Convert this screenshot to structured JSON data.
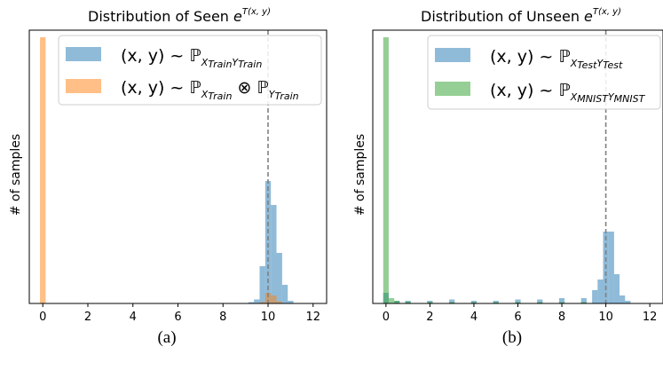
{
  "chart_data": [
    {
      "type": "bar",
      "subtype": "histogram",
      "title": "Distribution of Seen e^{T(x, y)}",
      "title_text": "Distribution of Seen",
      "title_math": "e",
      "title_sup": "T(x, y)",
      "ylabel": "# of samples",
      "xlabel": "",
      "caption": "(a)",
      "xlim": [
        -0.6,
        12.6
      ],
      "ylim": [
        0,
        100
      ],
      "xticks": [
        "0",
        "2",
        "4",
        "6",
        "8",
        "10",
        "12"
      ],
      "xtick_values": [
        0,
        2,
        4,
        6,
        8,
        10,
        12
      ],
      "yticks_shown": false,
      "grid": false,
      "legend_position": "top-right",
      "vline": {
        "x": 10,
        "style": "dashed",
        "color": "#808080"
      },
      "bin_width": 0.25,
      "series": [
        {
          "legend_label": "(x, y) ~ P_{X_Train Y_Train}",
          "legend_main": "(x, y) ~ ℙ",
          "legend_sub": "X",
          "legend_sub2": "Train",
          "legend_sub3": "Y",
          "legend_sub4": "Train",
          "color": "#1f77b4",
          "alpha": 0.5,
          "bins": [
            {
              "x": 9.25,
              "v": 0.5
            },
            {
              "x": 9.5,
              "v": 1.5
            },
            {
              "x": 9.75,
              "v": 14
            },
            {
              "x": 10.0,
              "v": 46
            },
            {
              "x": 10.25,
              "v": 37
            },
            {
              "x": 10.5,
              "v": 19
            },
            {
              "x": 10.75,
              "v": 7
            },
            {
              "x": 11.0,
              "v": 1
            }
          ]
        },
        {
          "legend_label": "(x, y) ~ P_{X_Train} ⊗ P_{Y_Train}",
          "legend_main": "(x, y) ~ ℙ",
          "legend_sub": "X",
          "legend_sub2": "Train",
          "legend_op": " ⊗ ℙ",
          "legend_sub3": "Y",
          "legend_sub4": "Train",
          "color": "#ff7f0e",
          "alpha": 0.5,
          "bins": [
            {
              "x": 0.0,
              "v": 100
            },
            {
              "x": 9.75,
              "v": 0.5
            },
            {
              "x": 10.0,
              "v": 4
            },
            {
              "x": 10.25,
              "v": 3
            },
            {
              "x": 10.5,
              "v": 0.8
            }
          ]
        }
      ]
    },
    {
      "type": "bar",
      "subtype": "histogram",
      "title": "Distribution of Unseen e^{T(x, y)}",
      "title_text": "Distribution of Unseen",
      "title_math": "e",
      "title_sup": "T(x, y)",
      "ylabel": "# of samples",
      "xlabel": "",
      "caption": "(b)",
      "xlim": [
        -0.6,
        12.6
      ],
      "ylim": [
        0,
        100
      ],
      "xticks": [
        "0",
        "2",
        "4",
        "6",
        "8",
        "10",
        "12"
      ],
      "xtick_values": [
        0,
        2,
        4,
        6,
        8,
        10,
        12
      ],
      "yticks_shown": false,
      "grid": false,
      "legend_position": "top-right",
      "vline": {
        "x": 10,
        "style": "dashed",
        "color": "#808080"
      },
      "bin_width": 0.25,
      "series": [
        {
          "legend_label": "(x, y) ~ P_{X_Test Y_Test}",
          "legend_main": "(x, y) ~ ℙ",
          "legend_sub": "X",
          "legend_sub2": "Test",
          "legend_sub3": "Y",
          "legend_sub4": "Test",
          "color": "#1f77b4",
          "alpha": 0.5,
          "bins": [
            {
              "x": 0.0,
              "v": 4
            },
            {
              "x": 0.5,
              "v": 1
            },
            {
              "x": 1.0,
              "v": 1
            },
            {
              "x": 2.0,
              "v": 1
            },
            {
              "x": 3.0,
              "v": 1.5
            },
            {
              "x": 4.0,
              "v": 1
            },
            {
              "x": 5.0,
              "v": 1
            },
            {
              "x": 6.0,
              "v": 1.5
            },
            {
              "x": 7.0,
              "v": 1.5
            },
            {
              "x": 8.0,
              "v": 2
            },
            {
              "x": 9.0,
              "v": 2
            },
            {
              "x": 9.5,
              "v": 5
            },
            {
              "x": 9.75,
              "v": 9
            },
            {
              "x": 10.0,
              "v": 27
            },
            {
              "x": 10.25,
              "v": 27
            },
            {
              "x": 10.5,
              "v": 11
            },
            {
              "x": 10.75,
              "v": 3
            },
            {
              "x": 11.0,
              "v": 1
            }
          ]
        },
        {
          "legend_label": "(x, y) ~ P_{X_MNIST Y_MNIST}",
          "legend_main": "(x, y) ~ ℙ",
          "legend_sub": "X",
          "legend_sub2": "MNIST",
          "legend_sub3": "Y",
          "legend_sub4": "MNIST",
          "color": "#2ca02c",
          "alpha": 0.5,
          "bins": [
            {
              "x": 0.0,
              "v": 100
            },
            {
              "x": 0.25,
              "v": 2
            },
            {
              "x": 0.5,
              "v": 1
            },
            {
              "x": 1.0,
              "v": 0.7
            },
            {
              "x": 2.0,
              "v": 0.6
            },
            {
              "x": 3.0,
              "v": 0.5
            },
            {
              "x": 4.0,
              "v": 0.5
            },
            {
              "x": 5.0,
              "v": 0.5
            },
            {
              "x": 6.0,
              "v": 0.5
            },
            {
              "x": 7.0,
              "v": 0.5
            },
            {
              "x": 8.0,
              "v": 0.5
            },
            {
              "x": 9.0,
              "v": 0.5
            }
          ]
        }
      ]
    }
  ]
}
